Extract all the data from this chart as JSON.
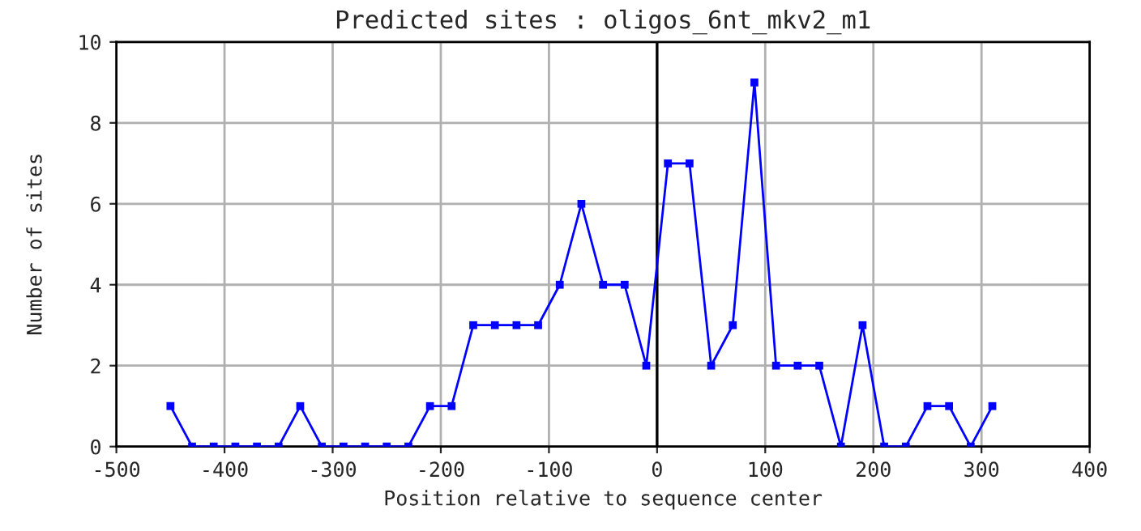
{
  "chart_data": {
    "type": "line",
    "title": "Predicted sites : oligos_6nt_mkv2_m1",
    "xlabel": "Position relative to sequence center",
    "ylabel": "Number of sites",
    "x": [
      -450,
      -430,
      -410,
      -390,
      -370,
      -350,
      -330,
      -310,
      -290,
      -270,
      -250,
      -230,
      -210,
      -190,
      -170,
      -150,
      -130,
      -110,
      -90,
      -70,
      -50,
      -30,
      -10,
      10,
      30,
      50,
      70,
      90,
      110,
      130,
      150,
      170,
      190,
      210,
      230,
      250,
      270,
      290,
      310
    ],
    "series": [
      {
        "color": "#0000ff",
        "values": [
          1,
          0,
          0,
          0,
          0,
          0,
          1,
          0,
          0,
          0,
          0,
          0,
          1,
          1,
          3,
          3,
          3,
          3,
          4,
          6,
          4,
          4,
          2,
          7,
          7,
          2,
          3,
          9,
          2,
          2,
          2,
          0,
          3,
          0,
          0,
          1,
          1,
          0,
          1
        ]
      }
    ],
    "xlim": [
      -500,
      400
    ],
    "xticks": [
      -500,
      -400,
      -300,
      -200,
      -100,
      0,
      100,
      200,
      300,
      400
    ],
    "ylim": [
      0,
      10
    ],
    "yticks": [
      0,
      2,
      4,
      6,
      8,
      10
    ],
    "ref_lines": [
      {
        "axis": "x",
        "value": 0,
        "color": "#000000"
      }
    ],
    "grid": true,
    "marker": "square",
    "line_style": "solid"
  }
}
